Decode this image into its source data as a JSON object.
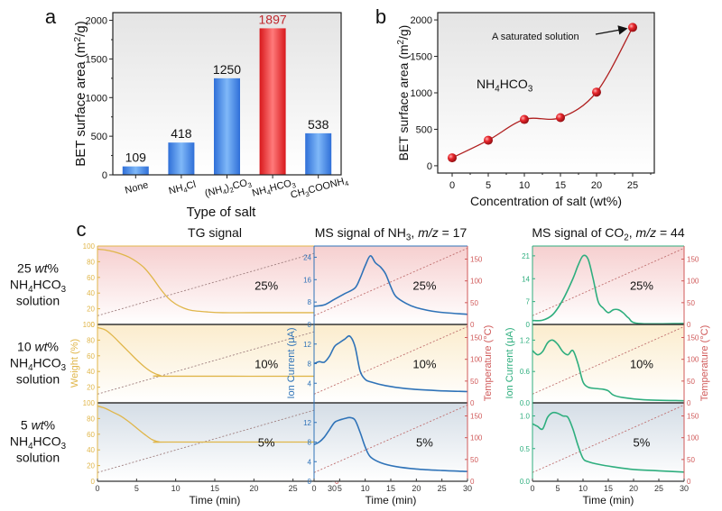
{
  "panels": {
    "a_label": "a",
    "b_label": "b",
    "c_label": "c"
  },
  "chart_data": [
    {
      "id": "a",
      "type": "bar",
      "title": "",
      "xlabel": "Type of salt",
      "ylabel": "BET surface area (m²/g)",
      "ylim": [
        0,
        2100
      ],
      "yticks": [
        0,
        500,
        1000,
        1500,
        2000
      ],
      "categories": [
        "None",
        "NH4Cl",
        "(NH4)2CO3",
        "NH4HCO3",
        "CH3COONH4"
      ],
      "category_labels": [
        {
          "parts": [
            [
              "None",
              ""
            ]
          ]
        },
        {
          "parts": [
            [
              "NH",
              ""
            ],
            [
              "4",
              "sub"
            ],
            [
              "Cl",
              ""
            ]
          ]
        },
        {
          "parts": [
            [
              "(NH",
              ""
            ],
            [
              "4",
              "sub"
            ],
            [
              ")",
              ""
            ],
            [
              "2",
              "sub"
            ],
            [
              "CO",
              ""
            ],
            [
              "3",
              "sub"
            ]
          ]
        },
        {
          "parts": [
            [
              "NH",
              ""
            ],
            [
              "4",
              "sub"
            ],
            [
              "HCO",
              ""
            ],
            [
              "3",
              "sub"
            ]
          ]
        },
        {
          "parts": [
            [
              "CH",
              ""
            ],
            [
              "3",
              "sub"
            ],
            [
              "COONH",
              ""
            ],
            [
              "4",
              "sub"
            ]
          ]
        }
      ],
      "values": [
        109,
        418,
        1250,
        1897,
        538
      ],
      "data_labels": [
        "109",
        "418",
        "1250",
        "1897",
        "538"
      ],
      "highlight_index": 3,
      "colors": {
        "bar": "#3b82e8",
        "highlight": "#e8262c",
        "highlight_label": "#c0282d"
      },
      "grid": false
    },
    {
      "id": "b",
      "type": "line",
      "title": "",
      "xlabel": "Concentration of salt (wt%)",
      "ylabel": "BET surface area (m²/g)",
      "xlim": [
        -2,
        28
      ],
      "ylim": [
        -100,
        2100
      ],
      "xticks": [
        0,
        5,
        10,
        15,
        20,
        25
      ],
      "yticks": [
        0,
        500,
        1000,
        1500,
        2000
      ],
      "x": [
        0,
        5,
        10,
        15,
        20,
        25
      ],
      "y": [
        109,
        350,
        635,
        660,
        1010,
        1897
      ],
      "series_label": "NH4HCO3",
      "annotation": "A saturated solution",
      "colors": {
        "line": "#b02020",
        "marker": "#e8262c"
      },
      "grid": false
    },
    {
      "id": "c",
      "type": "line",
      "xlabel": "Time (min)",
      "xlim": [
        0,
        30
      ],
      "xticks": [
        0,
        5,
        10,
        15,
        20,
        25,
        30
      ],
      "right_ylabel": "Temperature (°C)",
      "right_yticks": [
        0,
        50,
        100,
        150
      ],
      "right_ylim": [
        0,
        180
      ],
      "row_labels": [
        {
          "line1": "25 ",
          "line1_it": "wt",
          "line1_end": "%",
          "line3": "solution",
          "pct": "25%"
        },
        {
          "line1": "10 ",
          "line1_it": "wt",
          "line1_end": "%",
          "line3": "solution",
          "pct": "10%"
        },
        {
          "line1": "5 ",
          "line1_it": "wt",
          "line1_end": "%",
          "line3": "solution",
          "pct": "5%"
        }
      ],
      "temperature_ramp": {
        "x": [
          0,
          30
        ],
        "y": [
          20,
          175
        ]
      },
      "subplots": [
        {
          "name": "TG signal",
          "title_parts": [
            [
              "TG signal",
              ""
            ]
          ],
          "ylabel": "Weight (%)",
          "color": "#e0b64a",
          "rows": [
            {
              "ylim": [
                0,
                100
              ],
              "yticks": [
                0,
                20,
                40,
                60,
                80,
                100
              ],
              "x": [
                0,
                1,
                2,
                3,
                4,
                5,
                6,
                7,
                8,
                9,
                10,
                11,
                12,
                14,
                16,
                20,
                30
              ],
              "y": [
                96,
                95,
                93,
                90,
                86,
                80,
                72,
                60,
                46,
                34,
                26,
                21,
                18,
                16,
                15,
                15,
                15
              ]
            },
            {
              "ylim": [
                0,
                100
              ],
              "yticks": [
                20,
                40,
                60,
                80,
                100
              ],
              "x": [
                0,
                1,
                2,
                3,
                4,
                5,
                6,
                7,
                8,
                9,
                30
              ],
              "y": [
                96,
                93,
                85,
                75,
                65,
                55,
                46,
                39,
                35,
                34,
                34
              ]
            },
            {
              "ylim": [
                0,
                100
              ],
              "yticks": [
                0,
                20,
                40,
                60,
                80,
                100
              ],
              "x": [
                0,
                1,
                2,
                3,
                4,
                5,
                6,
                7,
                8,
                9,
                30
              ],
              "y": [
                96,
                93,
                88,
                83,
                76,
                68,
                60,
                53,
                50,
                50,
                50
              ]
            }
          ]
        },
        {
          "name": "MS signal of NH3, m/z = 17",
          "title_parts": [
            [
              "MS signal of NH",
              ""
            ],
            [
              "3",
              "sub"
            ],
            [
              ", ",
              ""
            ],
            [
              "m/z",
              "it"
            ],
            [
              " = 17",
              ""
            ]
          ],
          "ylabel": "Ion Current (μA)",
          "color": "#2f73b8",
          "rows": [
            {
              "ylim": [
                0,
                28
              ],
              "yticks": [
                0,
                8,
                16,
                24
              ],
              "x": [
                0,
                2,
                4,
                6,
                8,
                9,
                10,
                11,
                12,
                13,
                14,
                15,
                16,
                18,
                20,
                24,
                30
              ],
              "y": [
                6.5,
                7,
                9,
                11,
                13,
                16.5,
                21,
                24.5,
                22,
                20.5,
                18,
                13.5,
                10,
                7.5,
                6,
                4.5,
                3.6
              ]
            },
            {
              "ylim": [
                0,
                16
              ],
              "yticks": [
                4,
                8,
                12
              ],
              "x": [
                0,
                1,
                2,
                3,
                4,
                5,
                6,
                7,
                8,
                9,
                10,
                11,
                14,
                18,
                24,
                30
              ],
              "y": [
                8,
                8.4,
                8.3,
                9.5,
                11.5,
                12.3,
                13,
                13.6,
                11.5,
                6.5,
                4.8,
                4.3,
                3.5,
                2.9,
                2.5,
                2.3
              ]
            },
            {
              "ylim": [
                0,
                16
              ],
              "yticks": [
                0,
                4,
                8,
                12
              ],
              "x": [
                0,
                1,
                2,
                3,
                4,
                5,
                6,
                7,
                8,
                9,
                10,
                11,
                13,
                16,
                20,
                25,
                30
              ],
              "y": [
                7.5,
                8,
                9,
                10.5,
                12,
                12.5,
                12.8,
                13,
                12.5,
                10,
                7,
                5,
                3.8,
                3,
                2.5,
                2.2,
                2
              ]
            }
          ]
        },
        {
          "name": "MS signal of CO2, m/z = 44",
          "title_parts": [
            [
              "MS signal of CO",
              ""
            ],
            [
              "2",
              "sub"
            ],
            [
              ", ",
              ""
            ],
            [
              "m/z",
              "it"
            ],
            [
              " = 44",
              ""
            ]
          ],
          "ylabel": "Ion Current (μA)",
          "color": "#2eae7e",
          "rows": [
            {
              "ylim": [
                0,
                24
              ],
              "yticks": [
                0,
                7,
                14,
                21
              ],
              "x": [
                0,
                2,
                4,
                6,
                8,
                9,
                10,
                11,
                12,
                13,
                14,
                15,
                16,
                17,
                18,
                19,
                21,
                30
              ],
              "y": [
                1.2,
                1.3,
                3,
                7.5,
                14,
                18,
                21,
                20,
                14,
                7,
                5,
                3.6,
                4.5,
                4.5,
                3.5,
                2,
                0.3,
                0.3
              ]
            },
            {
              "ylim": [
                0,
                1.5
              ],
              "yticks": [
                0.0,
                0.6,
                1.2
              ],
              "x": [
                0,
                1,
                2,
                3,
                4,
                5,
                6,
                7,
                8,
                9,
                10,
                11,
                12,
                14,
                15,
                16,
                18,
                22,
                30
              ],
              "y": [
                1.0,
                0.92,
                0.98,
                1.15,
                1.2,
                1.12,
                0.98,
                0.92,
                1.0,
                0.75,
                0.4,
                0.3,
                0.28,
                0.26,
                0.23,
                0.15,
                0.1,
                0.06,
                0.04
              ]
            },
            {
              "ylim": [
                0,
                1.2
              ],
              "yticks": [
                0.0,
                0.5,
                1.0
              ],
              "x": [
                0,
                1,
                2,
                3,
                4,
                5,
                6,
                7,
                8,
                9,
                10,
                11,
                13,
                16,
                20,
                25,
                30
              ],
              "y": [
                0.88,
                0.84,
                0.8,
                0.98,
                1.05,
                1.04,
                1.0,
                0.98,
                0.8,
                0.55,
                0.35,
                0.3,
                0.26,
                0.22,
                0.18,
                0.16,
                0.14
              ]
            }
          ]
        }
      ]
    }
  ]
}
